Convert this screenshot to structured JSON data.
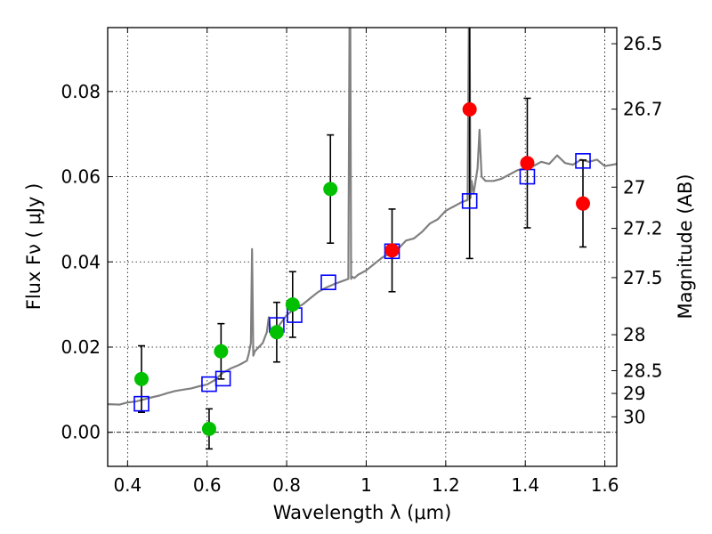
{
  "chart_data": {
    "type": "scatter",
    "xlabel": "Wavelength  λ (μm)",
    "ylabel": "Flux  Fν  ( μJy )",
    "y2label": "Magnitude (AB)",
    "xlim": [
      0.35,
      1.63
    ],
    "ylim": [
      -0.008,
      0.095
    ],
    "grid": true,
    "x_ticks": [
      {
        "v": 0.4,
        "label": "0.4"
      },
      {
        "v": 0.6,
        "label": "0.6"
      },
      {
        "v": 0.8,
        "label": "0.8"
      },
      {
        "v": 1.0,
        "label": "1"
      },
      {
        "v": 1.2,
        "label": "1.2"
      },
      {
        "v": 1.4,
        "label": "1.4"
      },
      {
        "v": 1.6,
        "label": "1.6"
      }
    ],
    "y_ticks": [
      {
        "v": 0.0,
        "label": "0.00"
      },
      {
        "v": 0.02,
        "label": "0.02"
      },
      {
        "v": 0.04,
        "label": "0.04"
      },
      {
        "v": 0.06,
        "label": "0.06"
      },
      {
        "v": 0.08,
        "label": "0.08"
      }
    ],
    "y2_ticks": [
      {
        "mag": 26.5,
        "label": "26.5"
      },
      {
        "mag": 26.7,
        "label": "26.7"
      },
      {
        "mag": 27,
        "label": "27"
      },
      {
        "mag": 27.2,
        "label": "27.2"
      },
      {
        "mag": 27.5,
        "label": "27.5"
      },
      {
        "mag": 28,
        "label": "28"
      },
      {
        "mag": 28.5,
        "label": "28.5"
      },
      {
        "mag": 29,
        "label": "29"
      },
      {
        "mag": 30,
        "label": "30"
      }
    ],
    "model_spectrum": {
      "color": "#808080",
      "x": [
        0.35,
        0.38,
        0.4,
        0.42,
        0.44,
        0.46,
        0.48,
        0.5,
        0.52,
        0.54,
        0.56,
        0.58,
        0.6,
        0.62,
        0.64,
        0.66,
        0.68,
        0.7,
        0.705,
        0.71,
        0.713,
        0.716,
        0.72,
        0.74,
        0.75,
        0.755,
        0.76,
        0.78,
        0.79,
        0.8,
        0.82,
        0.84,
        0.86,
        0.88,
        0.9,
        0.92,
        0.94,
        0.955,
        0.958,
        0.96,
        0.962,
        0.965,
        0.97,
        0.98,
        1.0,
        1.02,
        1.04,
        1.06,
        1.08,
        1.1,
        1.12,
        1.14,
        1.16,
        1.18,
        1.2,
        1.22,
        1.24,
        1.255,
        1.258,
        1.26,
        1.262,
        1.265,
        1.27,
        1.28,
        1.285,
        1.29,
        1.3,
        1.32,
        1.34,
        1.36,
        1.38,
        1.4,
        1.42,
        1.44,
        1.46,
        1.48,
        1.5,
        1.52,
        1.54,
        1.56,
        1.58,
        1.6,
        1.63
      ],
      "y": [
        0.0066,
        0.0065,
        0.007,
        0.0072,
        0.0077,
        0.0082,
        0.0086,
        0.0092,
        0.0097,
        0.01,
        0.0103,
        0.0108,
        0.0112,
        0.0123,
        0.014,
        0.015,
        0.0158,
        0.0168,
        0.0185,
        0.021,
        0.043,
        0.018,
        0.019,
        0.021,
        0.0235,
        0.027,
        0.0235,
        0.025,
        0.0262,
        0.0275,
        0.029,
        0.03,
        0.0315,
        0.033,
        0.034,
        0.0348,
        0.0355,
        0.036,
        0.095,
        0.095,
        0.036,
        0.0365,
        0.0362,
        0.037,
        0.038,
        0.0395,
        0.041,
        0.042,
        0.043,
        0.045,
        0.0455,
        0.047,
        0.049,
        0.05,
        0.052,
        0.053,
        0.054,
        0.0545,
        0.095,
        0.095,
        0.055,
        0.059,
        0.056,
        0.062,
        0.071,
        0.06,
        0.059,
        0.059,
        0.0595,
        0.0605,
        0.0615,
        0.062,
        0.0625,
        0.0635,
        0.063,
        0.065,
        0.0632,
        0.0628,
        0.064,
        0.0635,
        0.064,
        0.0625,
        0.063
      ]
    },
    "model_photometry": {
      "color": "#0000ff",
      "marker": "open-square",
      "x": [
        0.435,
        0.605,
        0.64,
        0.775,
        0.82,
        0.905,
        1.065,
        1.26,
        1.405,
        1.545
      ],
      "y": [
        0.0067,
        0.0113,
        0.0126,
        0.0252,
        0.0275,
        0.0352,
        0.0425,
        0.0543,
        0.06,
        0.0637
      ]
    },
    "series": [
      {
        "color": "#00c000",
        "marker": "circle",
        "points": [
          {
            "x": 0.435,
            "y": 0.0125,
            "err": 0.0078
          },
          {
            "x": 0.605,
            "y": 0.0008,
            "err": 0.0047
          },
          {
            "x": 0.635,
            "y": 0.019,
            "err": 0.0065
          },
          {
            "x": 0.775,
            "y": 0.0235,
            "err": 0.007
          },
          {
            "x": 0.815,
            "y": 0.03,
            "err": 0.0077
          },
          {
            "x": 0.91,
            "y": 0.0571,
            "err": 0.0127
          }
        ]
      },
      {
        "color": "#ff0000",
        "marker": "circle",
        "points": [
          {
            "x": 1.065,
            "y": 0.0427,
            "err": 0.0097
          },
          {
            "x": 1.26,
            "y": 0.0758,
            "err": 0.035
          },
          {
            "x": 1.405,
            "y": 0.0632,
            "err": 0.0152
          },
          {
            "x": 1.545,
            "y": 0.0537,
            "err": 0.0102
          }
        ]
      }
    ]
  }
}
